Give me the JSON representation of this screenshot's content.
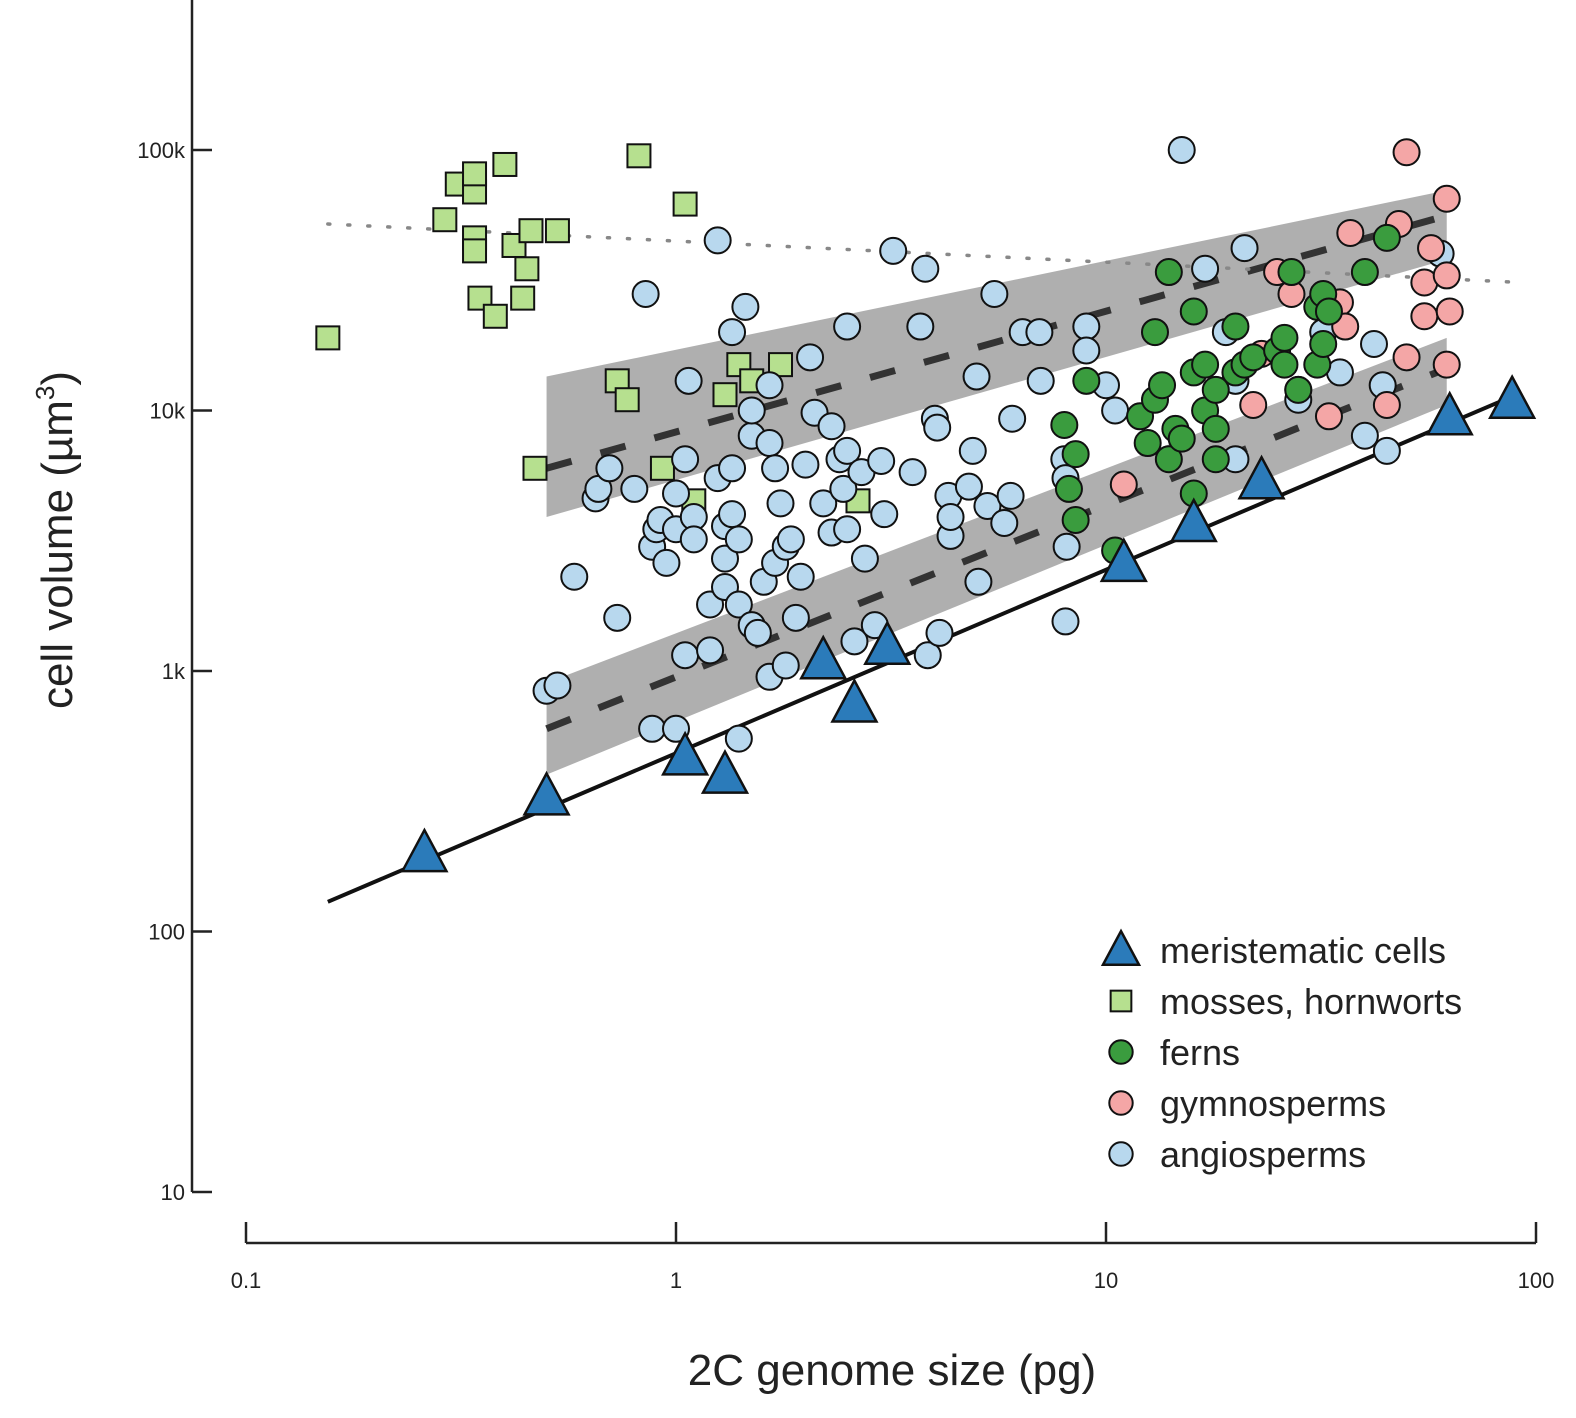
{
  "chart_data": {
    "type": "scatter",
    "xlabel": "2C genome size (pg)",
    "ylabel": "cell volume (µm",
    "ylabel_sup": "3",
    "ylabel_close": ")",
    "xscale": "log",
    "yscale": "log",
    "xlim": [
      0.1,
      100
    ],
    "ylim": [
      10,
      450000
    ],
    "x_ticks": [
      0.1,
      1,
      10,
      100
    ],
    "x_tick_labels": [
      "0.1",
      "1",
      "10",
      "100"
    ],
    "y_ticks": [
      10,
      100,
      1000,
      10000,
      100000
    ],
    "y_tick_labels": [
      "10",
      "100",
      "1k",
      "10k",
      "100k"
    ],
    "legend_position": "bottom-right",
    "grid": false,
    "series": [
      {
        "name": "meristematic cells",
        "marker": "triangle",
        "color": "#2b7bba",
        "points": [
          [
            0.26,
            200
          ],
          [
            0.5,
            330
          ],
          [
            1.05,
            470
          ],
          [
            1.3,
            400
          ],
          [
            2.2,
            1100
          ],
          [
            2.6,
            750
          ],
          [
            3.1,
            1250
          ],
          [
            11,
            2600
          ],
          [
            16,
            3700
          ],
          [
            23,
            5400
          ],
          [
            63,
            9500
          ],
          [
            88,
            11000
          ]
        ]
      },
      {
        "name": "mosses, hornworts",
        "marker": "square",
        "color": "#b6e08f",
        "points": [
          [
            0.155,
            19000
          ],
          [
            0.29,
            54000
          ],
          [
            0.31,
            74000
          ],
          [
            0.34,
            69000
          ],
          [
            0.34,
            81000
          ],
          [
            0.34,
            46000
          ],
          [
            0.34,
            41000
          ],
          [
            0.35,
            27000
          ],
          [
            0.38,
            23000
          ],
          [
            0.4,
            88000
          ],
          [
            0.42,
            43000
          ],
          [
            0.44,
            27000
          ],
          [
            0.45,
            35000
          ],
          [
            0.46,
            49000
          ],
          [
            0.53,
            49000
          ],
          [
            0.73,
            13000
          ],
          [
            0.77,
            11000
          ],
          [
            0.82,
            95000
          ],
          [
            1.05,
            62000
          ],
          [
            1.1,
            4500
          ],
          [
            1.3,
            11500
          ],
          [
            1.4,
            15000
          ],
          [
            1.5,
            13000
          ],
          [
            1.75,
            15000
          ],
          [
            0.47,
            6000
          ],
          [
            0.93,
            6000
          ],
          [
            2.65,
            4500
          ]
        ]
      },
      {
        "name": "ferns",
        "marker": "circle",
        "color": "#3a9c3e",
        "points": [
          [
            8,
            8800
          ],
          [
            8.2,
            5000
          ],
          [
            8.5,
            6800
          ],
          [
            8.5,
            3800
          ],
          [
            9,
            13000
          ],
          [
            10.5,
            2900
          ],
          [
            12,
            9500
          ],
          [
            12.5,
            7500
          ],
          [
            13,
            20000
          ],
          [
            13,
            11000
          ],
          [
            13.5,
            12500
          ],
          [
            14,
            34000
          ],
          [
            14,
            6500
          ],
          [
            14.5,
            8500
          ],
          [
            15,
            7800
          ],
          [
            16,
            4800
          ],
          [
            16,
            24000
          ],
          [
            16,
            14000
          ],
          [
            17,
            15000
          ],
          [
            17,
            10000
          ],
          [
            18,
            8500
          ],
          [
            18,
            6500
          ],
          [
            18,
            12000
          ],
          [
            20,
            21000
          ],
          [
            20,
            14000
          ],
          [
            21,
            15000
          ],
          [
            22,
            16000
          ],
          [
            25,
            17000
          ],
          [
            26,
            15000
          ],
          [
            26,
            19000
          ],
          [
            27,
            34000
          ],
          [
            28,
            12000
          ],
          [
            31,
            25000
          ],
          [
            31,
            15000
          ],
          [
            32,
            18000
          ],
          [
            32,
            28000
          ],
          [
            33,
            24000
          ],
          [
            40,
            34000
          ],
          [
            45,
            46000
          ]
        ]
      },
      {
        "name": "gymnosperms",
        "marker": "circle",
        "color": "#f4a6a6",
        "points": [
          [
            11,
            5200
          ],
          [
            22,
            10500
          ],
          [
            23,
            16500
          ],
          [
            25,
            34000
          ],
          [
            27,
            28000
          ],
          [
            33,
            9500
          ],
          [
            35,
            26000
          ],
          [
            36,
            21000
          ],
          [
            37,
            48000
          ],
          [
            45,
            10500
          ],
          [
            48,
            52000
          ],
          [
            50,
            16000
          ],
          [
            50,
            98000
          ],
          [
            55,
            31000
          ],
          [
            55,
            23000
          ],
          [
            57,
            42000
          ],
          [
            62,
            65000
          ],
          [
            62,
            33000
          ],
          [
            62,
            15000
          ],
          [
            63,
            24000
          ]
        ]
      },
      {
        "name": "angiosperms",
        "marker": "circle",
        "color": "#b8d8ee",
        "points": [
          [
            0.5,
            840
          ],
          [
            0.53,
            880
          ],
          [
            0.58,
            2300
          ],
          [
            0.65,
            4600
          ],
          [
            0.66,
            5000
          ],
          [
            0.7,
            6000
          ],
          [
            0.73,
            1600
          ],
          [
            0.8,
            5000
          ],
          [
            0.85,
            28000
          ],
          [
            0.88,
            3000
          ],
          [
            0.88,
            600
          ],
          [
            0.9,
            3500
          ],
          [
            0.92,
            3800
          ],
          [
            0.95,
            2600
          ],
          [
            1,
            600
          ],
          [
            1,
            3500
          ],
          [
            1,
            4800
          ],
          [
            1.05,
            6500
          ],
          [
            1.05,
            1150
          ],
          [
            1.07,
            13000
          ],
          [
            1.1,
            3900
          ],
          [
            1.1,
            3200
          ],
          [
            1.2,
            1800
          ],
          [
            1.2,
            1200
          ],
          [
            1.25,
            5500
          ],
          [
            1.25,
            45000
          ],
          [
            1.3,
            2100
          ],
          [
            1.3,
            2700
          ],
          [
            1.3,
            3600
          ],
          [
            1.35,
            6000
          ],
          [
            1.35,
            4000
          ],
          [
            1.35,
            20000
          ],
          [
            1.4,
            1800
          ],
          [
            1.4,
            3200
          ],
          [
            1.4,
            550
          ],
          [
            1.45,
            25000
          ],
          [
            1.5,
            8000
          ],
          [
            1.5,
            10000
          ],
          [
            1.5,
            1500
          ],
          [
            1.55,
            1400
          ],
          [
            1.6,
            2200
          ],
          [
            1.65,
            950
          ],
          [
            1.65,
            12500
          ],
          [
            1.65,
            7500
          ],
          [
            1.7,
            6000
          ],
          [
            1.7,
            2600
          ],
          [
            1.75,
            4400
          ],
          [
            1.8,
            1050
          ],
          [
            1.8,
            3000
          ],
          [
            1.85,
            3200
          ],
          [
            1.9,
            1600
          ],
          [
            1.95,
            2300
          ],
          [
            2,
            6200
          ],
          [
            2.05,
            16000
          ],
          [
            2.1,
            9800
          ],
          [
            2.2,
            4400
          ],
          [
            2.3,
            8700
          ],
          [
            2.3,
            3400
          ],
          [
            2.4,
            6500
          ],
          [
            2.45,
            5000
          ],
          [
            2.5,
            21000
          ],
          [
            2.5,
            7000
          ],
          [
            2.5,
            3500
          ],
          [
            2.6,
            1300
          ],
          [
            2.7,
            5800
          ],
          [
            2.75,
            2700
          ],
          [
            2.9,
            1500
          ],
          [
            3,
            6400
          ],
          [
            3.05,
            4000
          ],
          [
            3.2,
            41000
          ],
          [
            3.55,
            5800
          ],
          [
            3.7,
            21000
          ],
          [
            3.8,
            35000
          ],
          [
            3.85,
            1150
          ],
          [
            4,
            9300
          ],
          [
            4.05,
            8600
          ],
          [
            4.1,
            1400
          ],
          [
            4.3,
            4700
          ],
          [
            4.35,
            3300
          ],
          [
            4.35,
            3900
          ],
          [
            4.8,
            5100
          ],
          [
            4.9,
            7000
          ],
          [
            5.05,
            2200
          ],
          [
            5,
            13500
          ],
          [
            5.3,
            4300
          ],
          [
            5.5,
            28000
          ],
          [
            5.8,
            3700
          ],
          [
            6,
            4700
          ],
          [
            6.05,
            9300
          ],
          [
            6.4,
            20000
          ],
          [
            7,
            20000
          ],
          [
            7.05,
            13000
          ],
          [
            8,
            6500
          ],
          [
            8.05,
            5500
          ],
          [
            8.1,
            3000
          ],
          [
            8.05,
            1550
          ],
          [
            9,
            21000
          ],
          [
            9,
            17000
          ],
          [
            10,
            12500
          ],
          [
            10.5,
            10000
          ],
          [
            15,
            100000
          ],
          [
            17,
            35000
          ],
          [
            19,
            20000
          ],
          [
            20,
            13000
          ],
          [
            20,
            6500
          ],
          [
            21,
            42000
          ],
          [
            28,
            12000
          ],
          [
            28,
            11000
          ],
          [
            32,
            20000
          ],
          [
            35,
            14000
          ],
          [
            40,
            8000
          ],
          [
            42,
            18000
          ],
          [
            44,
            12500
          ],
          [
            45,
            7000
          ],
          [
            60,
            40000
          ]
        ]
      }
    ],
    "lines": [
      {
        "style": "solid",
        "x": [
          0.155,
          90
        ],
        "y": [
          130,
          11500
        ]
      },
      {
        "style": "dashed",
        "x": [
          0.5,
          62
        ],
        "y": [
          6000,
          56000
        ]
      },
      {
        "style": "dashed",
        "x": [
          0.5,
          62
        ],
        "y": [
          600,
          14500
        ]
      },
      {
        "style": "dotted",
        "x": [
          0.155,
          92
        ],
        "y": [
          52000,
          31000
        ]
      }
    ],
    "bands": [
      {
        "x": [
          0.5,
          62
        ],
        "lower": [
          3900,
          38000
        ],
        "upper": [
          13500,
          70000
        ]
      },
      {
        "x": [
          0.5,
          62
        ],
        "lower": [
          400,
          10500
        ],
        "upper": [
          900,
          19000
        ]
      }
    ]
  }
}
